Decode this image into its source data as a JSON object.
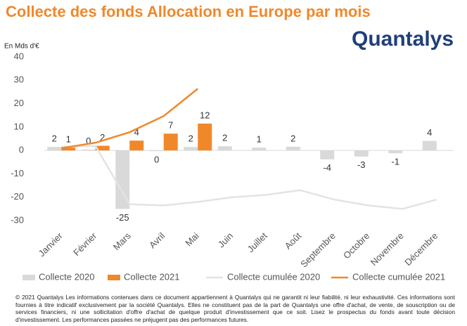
{
  "chart_data": {
    "type": "bar",
    "title": "Collecte des fonds Allocation en Europe par mois",
    "y_label": "En Mds d'€",
    "categories": [
      "Janvier",
      "Février",
      "Mars",
      "Avril",
      "Mai",
      "Juin",
      "Juillet",
      "Août",
      "Septembre",
      "Octobre",
      "Novembre",
      "Décembre"
    ],
    "series": [
      {
        "name": "Collecte 2020",
        "kind": "bar",
        "color": "#d9d9d9",
        "values": [
          1.5,
          0.4,
          -25,
          -0.3,
          1.5,
          1.8,
          1.2,
          1.6,
          -3.8,
          -2.6,
          -1.2,
          4.1
        ],
        "value_labels": [
          "2",
          "0",
          "-25",
          "0",
          "2",
          "2",
          "1",
          "2",
          "-4",
          "-3",
          "-1",
          "4"
        ]
      },
      {
        "name": "Collecte 2021",
        "kind": "bar",
        "color": "#f0882a",
        "values": [
          1.2,
          2,
          4.2,
          7.2,
          11.5,
          null,
          null,
          null,
          null,
          null,
          null,
          null
        ],
        "value_labels": [
          "1",
          "2",
          "4",
          "7",
          "12",
          null,
          null,
          null,
          null,
          null,
          null,
          null
        ]
      },
      {
        "name": "Collecte cumulée 2020",
        "kind": "line",
        "color": "#e3e3e3",
        "values": [
          1.5,
          1.9,
          -23,
          -23.5,
          -22,
          -20,
          -19,
          -17,
          -21,
          -23.5,
          -25,
          -21
        ]
      },
      {
        "name": "Collecte cumulée 2021",
        "kind": "line",
        "color": "#f0882a",
        "values": [
          1,
          3.3,
          7.8,
          14.7,
          26.4,
          null,
          null,
          null,
          null,
          null,
          null,
          null
        ]
      }
    ],
    "ylim": [
      -30,
      40
    ],
    "yticks": [
      -30,
      -20,
      -10,
      0,
      10,
      20,
      30,
      40
    ],
    "grid": false
  },
  "logo": "Quantalys",
  "footnote": "© 2021 Quantalys Les informations contenues dans ce document appartiennent à Quantalys qui ne garantit ni leur fiabilité, ni leur exhaustivité. Ces informations sont fournies à titre indicatif exclusivement par la société Quantalys. Elles ne constituent pas de la part de Quantalys une offre d'achat, de vente, de souscription ou de services financiers, ni une sollicitation d'offre d'achat de quelque produit d'investissement que ce soit. Lisez le prospectus du fonds avant toute décision d'investissement. Les performances passées ne préjugent pas des performances futures."
}
